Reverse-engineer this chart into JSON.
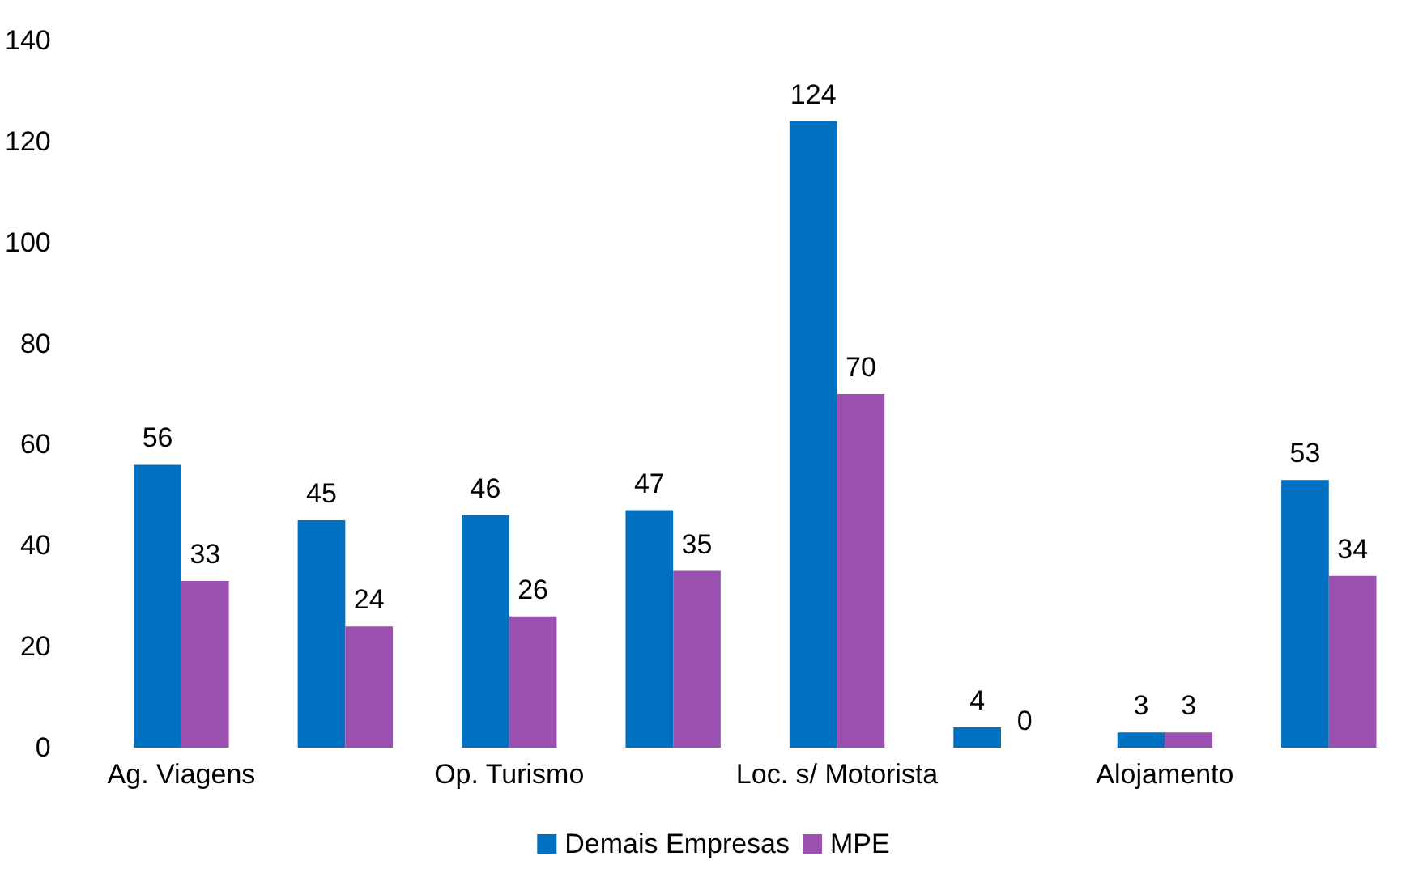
{
  "chart_data": {
    "type": "bar",
    "categories": [
      "Ag. Viagens",
      null,
      "Op. Turismo",
      null,
      "Loc. s/ Motorista",
      null,
      "Alojamento",
      null
    ],
    "series": [
      {
        "name": "Demais Empresas",
        "color": "#0070c0",
        "values": [
          56,
          45,
          46,
          47,
          124,
          4,
          3,
          53
        ]
      },
      {
        "name": "MPE",
        "color": "#9b51b0",
        "values": [
          33,
          24,
          26,
          35,
          70,
          0,
          3,
          34
        ]
      }
    ],
    "ylim": [
      0,
      140
    ],
    "yticks": [
      0,
      20,
      40,
      60,
      80,
      100,
      120,
      140
    ],
    "grid": false,
    "legend": "bottom",
    "data_labels": true
  }
}
